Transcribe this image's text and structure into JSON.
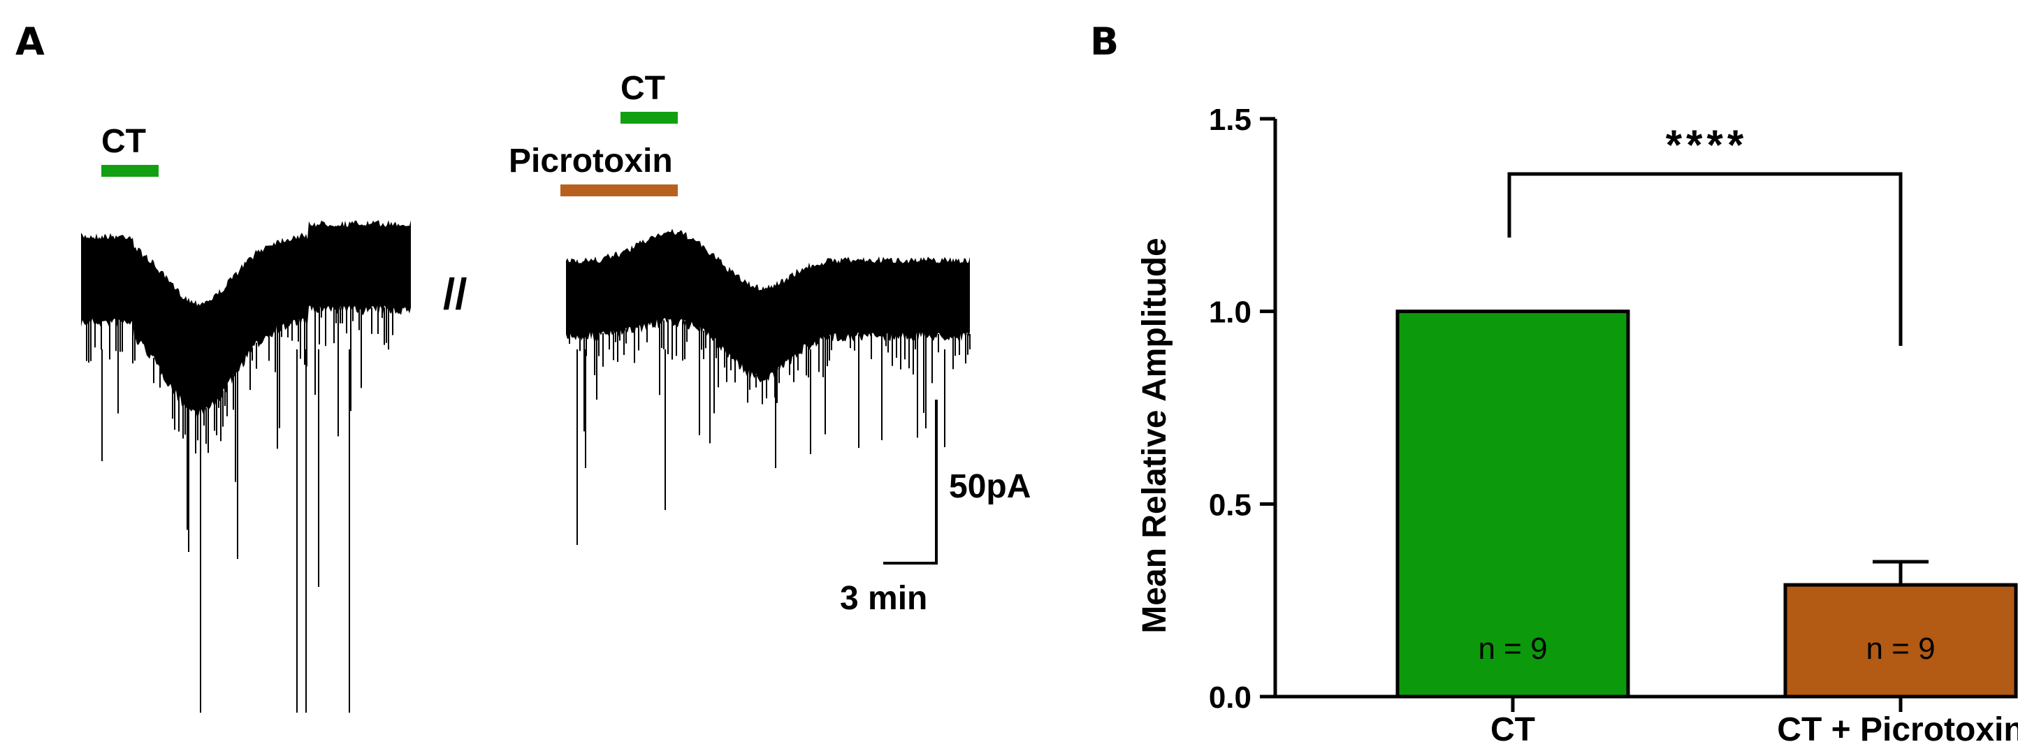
{
  "panels": {
    "a": "A",
    "b": "B"
  },
  "panel_a": {
    "trace1": {
      "drug_label": "CT",
      "bar_color": "#12a012"
    },
    "trace2": {
      "drug_label_top": "CT",
      "drug_label_top_color": "#12a012",
      "drug_label_bottom": "Picrotoxin",
      "drug_label_bottom_color": "#b8611f"
    },
    "break_mark": "//",
    "scale_y_label": "50pA",
    "scale_x_label": "3 min"
  },
  "chart_data": {
    "type": "bar",
    "categories": [
      "CT",
      "CT + Picrotoxin"
    ],
    "values": [
      1.0,
      0.29
    ],
    "error": [
      0,
      0.06
    ],
    "colors": [
      "#0c9a0c",
      "#b35a14"
    ],
    "n_labels": [
      "n = 9",
      "n = 9"
    ],
    "ylabel": "Mean Relative Amplitude",
    "ylim": [
      0,
      1.5
    ],
    "yticks": [
      0.0,
      0.5,
      1.0,
      1.5
    ],
    "ytick_labels": [
      "0.0",
      "0.5",
      "1.0",
      "1.5"
    ],
    "significance": "****",
    "grid": false
  }
}
